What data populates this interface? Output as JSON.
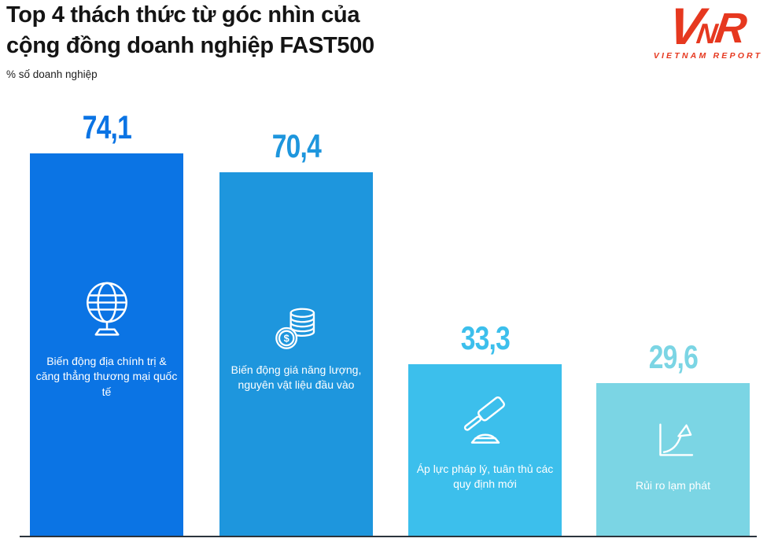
{
  "header": {
    "title_line1": "Top 4 thách thức từ góc nhìn của",
    "title_line2": "cộng đồng doanh nghiệp FAST500",
    "subtitle": "% số doanh nghiệp"
  },
  "logo": {
    "mark_v": "V",
    "mark_n": "N",
    "mark_r": "R",
    "wordmark": "VIETNAM REPORT",
    "color": "#E6381F"
  },
  "chart_data": {
    "type": "bar",
    "title": "Top 4 thách thức từ góc nhìn của cộng đồng doanh nghiệp FAST500",
    "ylabel": "% số doanh nghiệp",
    "categories": [
      "Biến động địa chính trị & căng thẳng thương mại quốc tế",
      "Biến động giá năng lượng, nguyên vật liệu đầu vào",
      "Áp lực pháp lý, tuân thủ các quy định mới",
      "Rủi ro lạm phát"
    ],
    "values": [
      74.1,
      70.4,
      33.3,
      29.6
    ],
    "value_labels": [
      "74,1",
      "70,4",
      "33,3",
      "29,6"
    ],
    "bar_colors": [
      "#0B74E4",
      "#1E96DD",
      "#3CBFEC",
      "#7BD5E4"
    ],
    "icons": [
      "globe-icon",
      "coins-icon",
      "gavel-icon",
      "inflation-chart-icon"
    ],
    "ylim": [
      0,
      80
    ],
    "grid": false,
    "legend": "none",
    "value_label_position": "above-bar",
    "category_label_position": "inside-bar"
  }
}
